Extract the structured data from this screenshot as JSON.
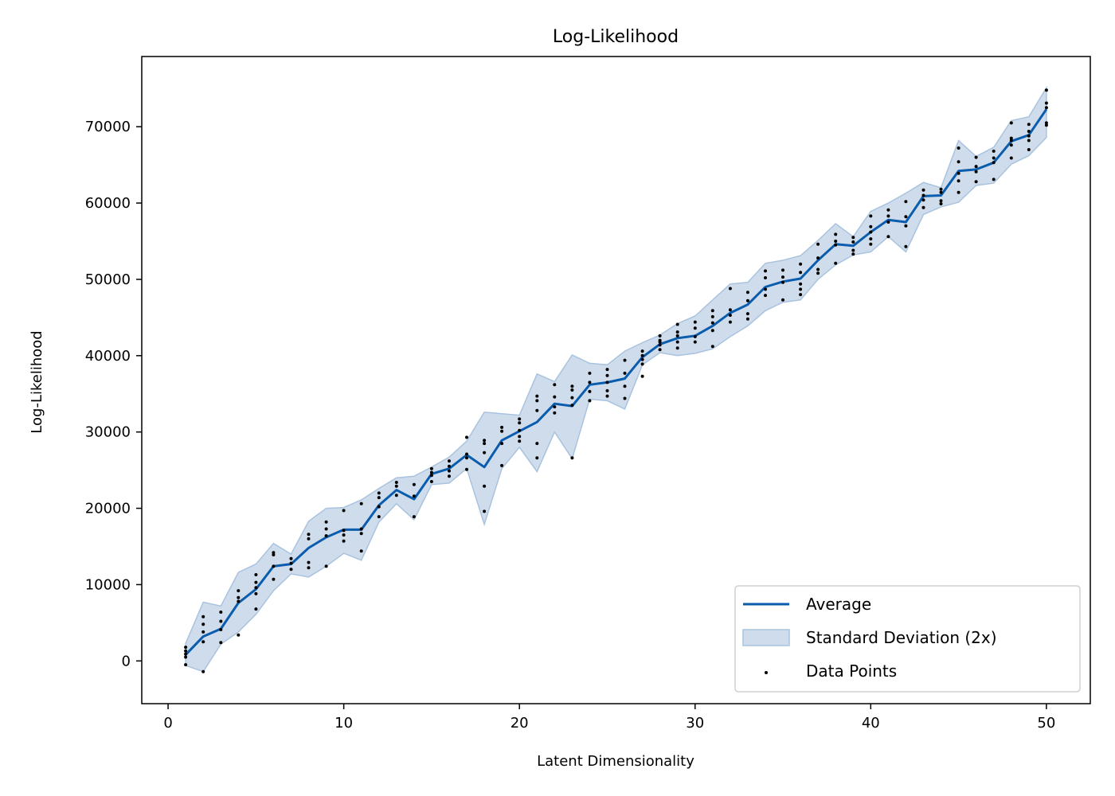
{
  "chart_data": {
    "type": "line",
    "title": "Log-Likelihood",
    "xlabel": "Latent Dimensionality",
    "ylabel": "Log-Likelihood",
    "xlim": [
      -1.5,
      52.5
    ],
    "ylim": [
      -5600,
      79200
    ],
    "xticks": [
      0,
      10,
      20,
      30,
      40,
      50
    ],
    "yticks": [
      0,
      10000,
      20000,
      30000,
      40000,
      50000,
      60000,
      70000
    ],
    "grid": false,
    "legend_position": "lower right",
    "legend": [
      {
        "label": "Average",
        "kind": "line"
      },
      {
        "label": "Standard Deviation (2x)",
        "kind": "band"
      },
      {
        "label": "Data Points",
        "kind": "point"
      }
    ],
    "colors": {
      "average": "#0a5cad",
      "band_fill": "#cfdcec",
      "band_edge": "#a9c3df",
      "points": "#000000"
    },
    "x": [
      1,
      2,
      3,
      4,
      5,
      6,
      7,
      8,
      9,
      10,
      11,
      12,
      13,
      14,
      15,
      16,
      17,
      18,
      19,
      20,
      21,
      22,
      23,
      24,
      25,
      26,
      27,
      28,
      29,
      30,
      31,
      32,
      33,
      34,
      35,
      36,
      37,
      38,
      39,
      40,
      41,
      42,
      43,
      44,
      45,
      46,
      47,
      48,
      49,
      50
    ],
    "series": [
      {
        "name": "Average",
        "values": [
          800,
          3200,
          4200,
          7600,
          9400,
          12400,
          12700,
          14800,
          16200,
          17200,
          17200,
          20400,
          22400,
          21200,
          24500,
          25200,
          27000,
          25400,
          28900,
          30100,
          31300,
          33700,
          33400,
          36200,
          36500,
          37000,
          39800,
          41500,
          42300,
          42600,
          43900,
          45600,
          46700,
          49000,
          49700,
          50100,
          52500,
          54600,
          54400,
          56200,
          57800,
          57500,
          60900,
          61000,
          64200,
          64400,
          65300,
          68100,
          68900,
          72300
        ]
      },
      {
        "name": "Standard Deviation (2x)",
        "lower": [
          -600,
          -1400,
          2200,
          3800,
          6100,
          9200,
          11400,
          11000,
          12400,
          14100,
          13200,
          18200,
          20600,
          18500,
          23100,
          23300,
          25200,
          17900,
          25200,
          28000,
          24800,
          30000,
          26500,
          34300,
          34100,
          33000,
          38800,
          40400,
          40000,
          40300,
          40900,
          42500,
          43900,
          45900,
          47000,
          47300,
          50000,
          51900,
          53200,
          53600,
          55600,
          53600,
          58500,
          59500,
          60100,
          62300,
          62600,
          65100,
          66200,
          68600
        ],
        "upper": [
          2300,
          7700,
          7200,
          11600,
          12700,
          15400,
          14000,
          18300,
          20000,
          20100,
          21100,
          22600,
          24000,
          24200,
          25400,
          26700,
          28800,
          32600,
          32400,
          32200,
          37600,
          36600,
          40100,
          39000,
          38800,
          40600,
          41700,
          42700,
          44200,
          45200,
          47300,
          49400,
          49600,
          52100,
          52500,
          53100,
          55100,
          57300,
          55600,
          58900,
          60000,
          61300,
          62700,
          62000,
          68200,
          66100,
          67300,
          70800,
          71300,
          75100
        ]
      }
    ],
    "points": [
      [
        1,
        1800
      ],
      [
        1,
        1300
      ],
      [
        1,
        900
      ],
      [
        1,
        500
      ],
      [
        1,
        -500
      ],
      [
        2,
        5800
      ],
      [
        2,
        4800
      ],
      [
        2,
        3800
      ],
      [
        2,
        2500
      ],
      [
        2,
        -1400
      ],
      [
        3,
        6400
      ],
      [
        3,
        5200
      ],
      [
        3,
        4100
      ],
      [
        3,
        2400
      ],
      [
        4,
        9200
      ],
      [
        4,
        8300
      ],
      [
        4,
        7800
      ],
      [
        4,
        3400
      ],
      [
        5,
        11300
      ],
      [
        5,
        10300
      ],
      [
        5,
        9600
      ],
      [
        5,
        8800
      ],
      [
        5,
        6800
      ],
      [
        6,
        14200
      ],
      [
        6,
        13900
      ],
      [
        6,
        12400
      ],
      [
        6,
        10700
      ],
      [
        7,
        13400
      ],
      [
        7,
        12800
      ],
      [
        7,
        12000
      ],
      [
        8,
        16600
      ],
      [
        8,
        16000
      ],
      [
        8,
        12900
      ],
      [
        8,
        12200
      ],
      [
        9,
        18200
      ],
      [
        9,
        17300
      ],
      [
        9,
        16400
      ],
      [
        9,
        12400
      ],
      [
        10,
        19700
      ],
      [
        10,
        17100
      ],
      [
        10,
        16500
      ],
      [
        10,
        15700
      ],
      [
        11,
        20600
      ],
      [
        11,
        17300
      ],
      [
        11,
        16700
      ],
      [
        11,
        14400
      ],
      [
        12,
        22000
      ],
      [
        12,
        21400
      ],
      [
        12,
        20200
      ],
      [
        12,
        18900
      ],
      [
        13,
        23400
      ],
      [
        13,
        22900
      ],
      [
        13,
        21700
      ],
      [
        14,
        23100
      ],
      [
        14,
        21600
      ],
      [
        14,
        18900
      ],
      [
        15,
        25200
      ],
      [
        15,
        24700
      ],
      [
        15,
        24300
      ],
      [
        15,
        23500
      ],
      [
        16,
        26200
      ],
      [
        16,
        25500
      ],
      [
        16,
        24900
      ],
      [
        16,
        24200
      ],
      [
        17,
        29300
      ],
      [
        17,
        27100
      ],
      [
        17,
        26600
      ],
      [
        17,
        25100
      ],
      [
        18,
        28900
      ],
      [
        18,
        28500
      ],
      [
        18,
        27300
      ],
      [
        18,
        22900
      ],
      [
        18,
        19600
      ],
      [
        19,
        30600
      ],
      [
        19,
        30100
      ],
      [
        19,
        28500
      ],
      [
        19,
        25600
      ],
      [
        20,
        31700
      ],
      [
        20,
        31200
      ],
      [
        20,
        30200
      ],
      [
        20,
        29400
      ],
      [
        20,
        28800
      ],
      [
        21,
        34700
      ],
      [
        21,
        34100
      ],
      [
        21,
        32800
      ],
      [
        21,
        28500
      ],
      [
        21,
        26600
      ],
      [
        22,
        36200
      ],
      [
        22,
        34600
      ],
      [
        22,
        33300
      ],
      [
        22,
        32500
      ],
      [
        23,
        36000
      ],
      [
        23,
        35500
      ],
      [
        23,
        34500
      ],
      [
        23,
        33500
      ],
      [
        23,
        26600
      ],
      [
        24,
        37700
      ],
      [
        24,
        36500
      ],
      [
        24,
        35300
      ],
      [
        24,
        34100
      ],
      [
        25,
        38200
      ],
      [
        25,
        37400
      ],
      [
        25,
        36500
      ],
      [
        25,
        35400
      ],
      [
        25,
        34700
      ],
      [
        26,
        39400
      ],
      [
        26,
        37700
      ],
      [
        26,
        36000
      ],
      [
        26,
        34400
      ],
      [
        27,
        40600
      ],
      [
        27,
        40000
      ],
      [
        27,
        39500
      ],
      [
        27,
        38900
      ],
      [
        27,
        37300
      ],
      [
        28,
        42600
      ],
      [
        28,
        42000
      ],
      [
        28,
        41800
      ],
      [
        28,
        41400
      ],
      [
        28,
        40800
      ],
      [
        29,
        44100
      ],
      [
        29,
        43100
      ],
      [
        29,
        42600
      ],
      [
        29,
        41800
      ],
      [
        29,
        41000
      ],
      [
        30,
        44400
      ],
      [
        30,
        43600
      ],
      [
        30,
        42500
      ],
      [
        30,
        41800
      ],
      [
        31,
        45900
      ],
      [
        31,
        45100
      ],
      [
        31,
        44300
      ],
      [
        31,
        43300
      ],
      [
        31,
        41200
      ],
      [
        32,
        48800
      ],
      [
        32,
        46000
      ],
      [
        32,
        45300
      ],
      [
        32,
        44400
      ],
      [
        33,
        48300
      ],
      [
        33,
        47200
      ],
      [
        33,
        45500
      ],
      [
        33,
        44800
      ],
      [
        34,
        51100
      ],
      [
        34,
        50200
      ],
      [
        34,
        48700
      ],
      [
        34,
        47900
      ],
      [
        35,
        51200
      ],
      [
        35,
        50300
      ],
      [
        35,
        49600
      ],
      [
        35,
        47300
      ],
      [
        36,
        52000
      ],
      [
        36,
        50900
      ],
      [
        36,
        49400
      ],
      [
        36,
        48700
      ],
      [
        36,
        48000
      ],
      [
        37,
        54600
      ],
      [
        37,
        52800
      ],
      [
        37,
        51300
      ],
      [
        37,
        50800
      ],
      [
        38,
        55900
      ],
      [
        38,
        55000
      ],
      [
        38,
        54500
      ],
      [
        38,
        52100
      ],
      [
        39,
        55500
      ],
      [
        39,
        54900
      ],
      [
        39,
        53800
      ],
      [
        39,
        53300
      ],
      [
        40,
        58300
      ],
      [
        40,
        56900
      ],
      [
        40,
        56200
      ],
      [
        40,
        55300
      ],
      [
        40,
        54600
      ],
      [
        41,
        59100
      ],
      [
        41,
        58300
      ],
      [
        41,
        57500
      ],
      [
        41,
        55600
      ],
      [
        42,
        60200
      ],
      [
        42,
        58200
      ],
      [
        42,
        57000
      ],
      [
        42,
        54300
      ],
      [
        43,
        61700
      ],
      [
        43,
        61000
      ],
      [
        43,
        60400
      ],
      [
        43,
        59400
      ],
      [
        44,
        61800
      ],
      [
        44,
        61400
      ],
      [
        44,
        60300
      ],
      [
        44,
        59900
      ],
      [
        45,
        67200
      ],
      [
        45,
        65400
      ],
      [
        45,
        63900
      ],
      [
        45,
        62900
      ],
      [
        45,
        61400
      ],
      [
        46,
        66000
      ],
      [
        46,
        64800
      ],
      [
        46,
        64100
      ],
      [
        46,
        62800
      ],
      [
        47,
        66800
      ],
      [
        47,
        65900
      ],
      [
        47,
        65300
      ],
      [
        47,
        63100
      ],
      [
        48,
        70500
      ],
      [
        48,
        68500
      ],
      [
        48,
        68200
      ],
      [
        48,
        67600
      ],
      [
        48,
        65900
      ],
      [
        49,
        70300
      ],
      [
        49,
        69400
      ],
      [
        49,
        68800
      ],
      [
        49,
        68200
      ],
      [
        49,
        67000
      ],
      [
        50,
        74800
      ],
      [
        50,
        73100
      ],
      [
        50,
        72500
      ],
      [
        50,
        70500
      ],
      [
        50,
        70200
      ]
    ]
  }
}
